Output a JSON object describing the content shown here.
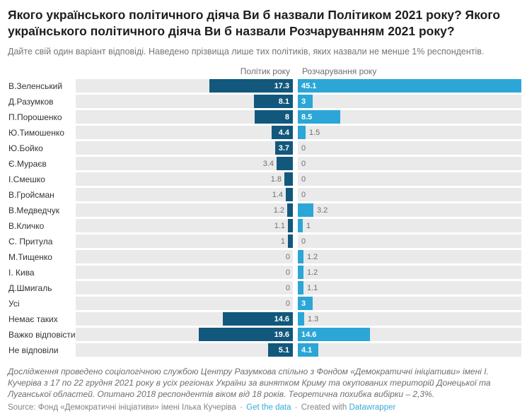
{
  "title": "Якого українського політичного діяча Ви б назвали Політиком 2021 року? Якого українського політичного діяча Ви б назвали Розчаруванням 2021 року?",
  "description": "Дайте свій один варіант відповіді. Наведено прізвища лише тих політиків, яких назвали не менше 1% респондентів.",
  "column_headers": {
    "left": "Політик року",
    "right": "Розчарування року"
  },
  "chart_data": {
    "type": "bar",
    "orientation": "diverging-horizontal",
    "max_scale": 45.1,
    "categories": [
      "В.Зеленський",
      "Д.Разумков",
      "П.Порошенко",
      "Ю.Тимошенко",
      "Ю.Бойко",
      "Є.Мураєв",
      "І.Смешко",
      "В.Гройсман",
      "В.Медведчук",
      "В.Кличко",
      "С. Притула",
      "М.Тищенко",
      "І. Кива",
      "Д.Шмигаль",
      "Усі",
      "Немає таких",
      "Важко відповісти",
      "Не відповіли"
    ],
    "series": [
      {
        "name": "Політик року",
        "values": [
          17.3,
          8.1,
          8,
          4.4,
          3.7,
          3.4,
          1.8,
          1.4,
          1.2,
          1.1,
          1,
          0,
          0,
          0,
          0,
          14.6,
          19.6,
          5.1
        ]
      },
      {
        "name": "Розчарування року",
        "values": [
          45.1,
          3,
          8.5,
          1.5,
          0,
          0,
          0,
          0,
          3.2,
          1,
          0,
          1.2,
          1.2,
          1.1,
          3,
          1.3,
          14.6,
          4.1
        ]
      }
    ],
    "legend_position": "column headers",
    "grid": false
  },
  "footnote": "Дослідження проведено соціологічною службою Центру Разумкова спільно з Фондом «Демократичні ініціативи» імені І. Кучеріва з 17 по 22 грудня 2021 року в усіх регіонах України за винятком Криму та окупованих територій Донецької та Луганської областей. Опитано 2018 респондентів віком від 18 років. Теоретична похибка вибірки – 2,3%.",
  "source": {
    "label": "Source: Фонд «Демократичні ініціативи» імені Ілька Кучеріва",
    "separator": "·",
    "get_data_label": "Get the data",
    "created_with_label": "Created with",
    "creator_label": "Datawrapper"
  },
  "colors": {
    "bar_dark": "#12587c",
    "bar_light": "#2ba6d6",
    "track": "#eaeaeb",
    "inside_label": "#ffffff",
    "outside_label": "#6f6f6f",
    "link": "#3aa9d8"
  }
}
